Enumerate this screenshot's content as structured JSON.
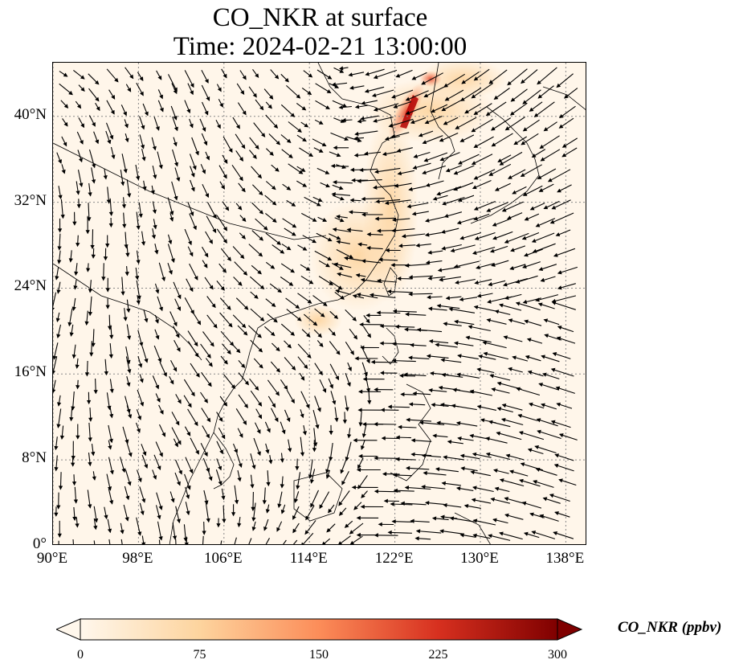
{
  "title": {
    "line1": "CO_NKR at surface",
    "line2": "Time: 2024-02-21 13:00:00"
  },
  "map": {
    "projection": "PlateCarree",
    "lon_range": [
      90,
      140
    ],
    "lat_range": [
      0,
      45
    ],
    "gridlines": "dotted grey",
    "x_ticks": [
      "90°E",
      "98°E",
      "106°E",
      "114°E",
      "122°E",
      "130°E",
      "138°E"
    ],
    "y_ticks": [
      "40°N",
      "32°N",
      "24°N",
      "16°N",
      "8°N",
      "0°"
    ],
    "field": "CO_NKR",
    "overlay": "wind vectors (quiver)"
  },
  "colorbar": {
    "title": "CO_NKR (ppbv)",
    "ticks": [
      "0",
      "75",
      "150",
      "225",
      "300"
    ],
    "range": [
      0,
      300
    ],
    "extend": "both",
    "colormap": "OrRd",
    "colors": [
      "#fff7ec",
      "#fdd49e",
      "#fc8d59",
      "#d7301f",
      "#7f0000"
    ]
  }
}
